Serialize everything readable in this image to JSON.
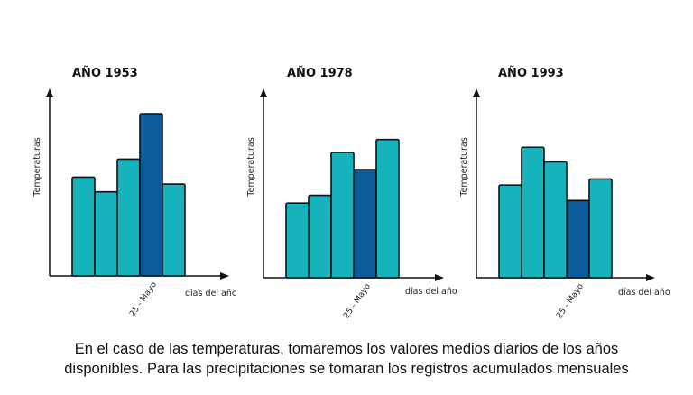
{
  "chart_data": [
    {
      "type": "bar",
      "title": "AÑO 1953",
      "ylabel": "Temperaturas",
      "xlabel": "días del año",
      "highlight_label": "25 - Mayo",
      "values": [
        115,
        98,
        136,
        189,
        107
      ],
      "highlight_index": 3,
      "ylim": [
        0,
        210
      ]
    },
    {
      "type": "bar",
      "title": "AÑO 1978",
      "ylabel": "Temperaturas",
      "xlabel": "días del año",
      "highlight_label": "25 - Mayo",
      "values": [
        87,
        96,
        146,
        126,
        161
      ],
      "highlight_index": 3,
      "ylim": [
        0,
        210
      ]
    },
    {
      "type": "bar",
      "title": "AÑO 1993",
      "ylabel": "Temperaturas",
      "xlabel": "días del año",
      "highlight_label": "25 - Mayo",
      "values": [
        108,
        152,
        135,
        90,
        115
      ],
      "highlight_index": 3,
      "ylim": [
        0,
        210
      ]
    }
  ],
  "colors": {
    "bar": "#17b3bd",
    "highlight": "#0c5b9a",
    "stroke": "#111111"
  },
  "caption": {
    "line1": "En el caso de las temperaturas, tomaremos los valores medios diarios de los años",
    "line2": "disponibles. Para las precipitaciones se tomaran los registros acumulados mensuales"
  }
}
